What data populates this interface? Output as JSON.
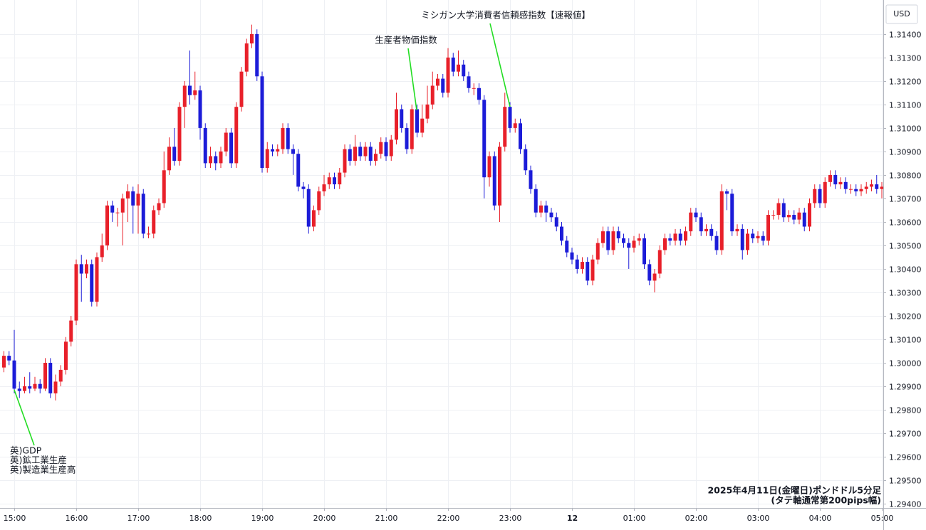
{
  "chart_data": {
    "type": "candlestick",
    "currency": "USD",
    "footnote": [
      "2025年4月11日(金曜日)ポンドドル5分足",
      "(タテ軸通常第200pips幅)"
    ],
    "annotations": [
      {
        "text": [
          "英)GDP",
          "英)鉱工業生産",
          "英)製造業生産高"
        ]
      },
      {
        "text": [
          "生産者物価指数"
        ]
      },
      {
        "text": [
          "ミシガン大学消費者信頼感指数【速報値】"
        ]
      }
    ],
    "up_color": "#e8202a",
    "down_color": "#1c1cd8",
    "grid": true,
    "ylim": [
      1.29382,
      1.31545
    ],
    "yticks": [
      {
        "value": 1.294,
        "label": "1.29400"
      },
      {
        "value": 1.295,
        "label": "1.29500"
      },
      {
        "value": 1.296,
        "label": "1.29600"
      },
      {
        "value": 1.297,
        "label": "1.29700"
      },
      {
        "value": 1.298,
        "label": "1.29800"
      },
      {
        "value": 1.299,
        "label": "1.29900"
      },
      {
        "value": 1.3,
        "label": "1.30000"
      },
      {
        "value": 1.301,
        "label": "1.30100"
      },
      {
        "value": 1.302,
        "label": "1.30200"
      },
      {
        "value": 1.303,
        "label": "1.30300"
      },
      {
        "value": 1.304,
        "label": "1.30400"
      },
      {
        "value": 1.305,
        "label": "1.30500"
      },
      {
        "value": 1.306,
        "label": "1.30600"
      },
      {
        "value": 1.307,
        "label": "1.30700"
      },
      {
        "value": 1.308,
        "label": "1.30800"
      },
      {
        "value": 1.309,
        "label": "1.30900"
      },
      {
        "value": 1.31,
        "label": "1.31000"
      },
      {
        "value": 1.311,
        "label": "1.31100"
      },
      {
        "value": 1.312,
        "label": "1.31200"
      },
      {
        "value": 1.313,
        "label": "1.31300"
      },
      {
        "value": 1.314,
        "label": "1.31400"
      }
    ],
    "xticks": [
      "15:00",
      "16:00",
      "17:00",
      "18:00",
      "19:00",
      "20:00",
      "21:00",
      "22:00",
      "23:00",
      {
        "value": "00:00",
        "label": "12"
      },
      "01:00",
      "02:00",
      "03:00",
      "04:00",
      "05:00"
    ],
    "x": [
      "14:50",
      "14:55",
      "15:00",
      "15:05",
      "15:10",
      "15:15",
      "15:20",
      "15:25",
      "15:30",
      "15:35",
      "15:40",
      "15:45",
      "15:50",
      "15:55",
      "16:00",
      "16:05",
      "16:10",
      "16:15",
      "16:20",
      "16:25",
      "16:30",
      "16:35",
      "16:40",
      "16:45",
      "16:50",
      "16:55",
      "17:00",
      "17:05",
      "17:10",
      "17:15",
      "17:20",
      "17:25",
      "17:30",
      "17:35",
      "17:40",
      "17:45",
      "17:50",
      "17:55",
      "18:00",
      "18:05",
      "18:10",
      "18:15",
      "18:20",
      "18:25",
      "18:30",
      "18:35",
      "18:40",
      "18:45",
      "18:50",
      "18:55",
      "19:00",
      "19:05",
      "19:10",
      "19:15",
      "19:20",
      "19:25",
      "19:30",
      "19:35",
      "19:40",
      "19:45",
      "19:50",
      "19:55",
      "20:00",
      "20:05",
      "20:10",
      "20:15",
      "20:20",
      "20:25",
      "20:30",
      "20:35",
      "20:40",
      "20:45",
      "20:50",
      "20:55",
      "21:00",
      "21:05",
      "21:10",
      "21:15",
      "21:20",
      "21:25",
      "21:30",
      "21:35",
      "21:40",
      "21:45",
      "21:50",
      "21:55",
      "22:00",
      "22:05",
      "22:10",
      "22:15",
      "22:20",
      "22:25",
      "22:30",
      "22:35",
      "22:40",
      "22:45",
      "22:50",
      "22:55",
      "23:00",
      "23:05",
      "23:10",
      "23:15",
      "23:20",
      "23:25",
      "23:30",
      "23:35",
      "23:40",
      "23:45",
      "23:50",
      "23:55",
      "00:00",
      "00:05",
      "00:10",
      "00:15",
      "00:20",
      "00:25",
      "00:30",
      "00:35",
      "00:40",
      "00:45",
      "00:50",
      "00:55",
      "01:00",
      "01:05",
      "01:10",
      "01:15",
      "01:20",
      "01:25",
      "01:30",
      "01:35",
      "01:40",
      "01:45",
      "01:50",
      "01:55",
      "02:00",
      "02:05",
      "02:10",
      "02:15",
      "02:20",
      "02:25",
      "02:30",
      "02:35",
      "02:40",
      "02:45",
      "02:50",
      "02:55",
      "03:00",
      "03:05",
      "03:10",
      "03:15",
      "03:20",
      "03:25",
      "03:30",
      "03:35",
      "03:40",
      "03:45",
      "03:50",
      "03:55",
      "04:00",
      "04:05",
      "04:10",
      "04:15",
      "04:20",
      "04:25",
      "04:30",
      "04:35",
      "04:40",
      "04:45",
      "04:50",
      "04:55",
      "05:00"
    ],
    "open": [
      1.2998,
      1.3003,
      1.3001,
      1.2989,
      1.2988,
      1.299,
      1.2989,
      1.2991,
      1.2989,
      1.3,
      1.2987,
      1.2992,
      1.2997,
      1.3009,
      1.3018,
      1.3042,
      1.3038,
      1.3042,
      1.3026,
      1.3045,
      1.305,
      1.3067,
      1.3064,
      1.3064,
      1.307,
      1.3073,
      1.3067,
      1.3072,
      1.3055,
      1.3055,
      1.3065,
      1.3068,
      1.3082,
      1.3092,
      1.3086,
      1.3109,
      1.3118,
      1.3114,
      1.3116,
      1.31,
      1.3085,
      1.3088,
      1.3085,
      1.309,
      1.3098,
      1.3085,
      1.3109,
      1.3124,
      1.3136,
      1.314,
      1.3122,
      1.3083,
      1.3091,
      1.309,
      1.3091,
      1.31,
      1.3091,
      1.3089,
      1.3075,
      1.3074,
      1.3058,
      1.3065,
      1.3073,
      1.3076,
      1.3079,
      1.3076,
      1.3081,
      1.3091,
      1.3086,
      1.3092,
      1.3088,
      1.3092,
      1.3086,
      1.3089,
      1.3094,
      1.3088,
      1.3095,
      1.3108,
      1.31,
      1.3091,
      1.3108,
      1.3098,
      1.3104,
      1.311,
      1.3118,
      1.3121,
      1.3115,
      1.313,
      1.3124,
      1.3127,
      1.3122,
      1.3117,
      1.3117,
      1.3112,
      1.3079,
      1.3088,
      1.3067,
      1.3092,
      1.3109,
      1.31,
      1.3102,
      1.3091,
      1.3082,
      1.3074,
      1.3064,
      1.3067,
      1.3064,
      1.3062,
      1.3058,
      1.3052,
      1.3047,
      1.3044,
      1.304,
      1.3043,
      1.3035,
      1.3044,
      1.3051,
      1.3056,
      1.3048,
      1.3056,
      1.3053,
      1.3051,
      1.3049,
      1.3052,
      1.3053,
      1.3042,
      1.3035,
      1.3038,
      1.3048,
      1.3053,
      1.3052,
      1.3055,
      1.3052,
      1.3056,
      1.3064,
      1.3062,
      1.3056,
      1.3057,
      1.3054,
      1.3048,
      1.3073,
      1.3072,
      1.3056,
      1.3057,
      1.3048,
      1.3055,
      1.3053,
      1.3054,
      1.3052,
      1.3063,
      1.3063,
      1.3068,
      1.3062,
      1.3063,
      1.3061,
      1.3064,
      1.3058,
      1.3068,
      1.3074,
      1.3068,
      1.3077,
      1.308,
      1.3076,
      1.3077,
      1.3074,
      1.3074,
      1.3073,
      1.3074,
      1.3075,
      1.3076,
      1.3074
    ],
    "high": [
      1.3005,
      1.3005,
      1.3014,
      1.2992,
      1.2994,
      1.2996,
      1.2994,
      1.2993,
      1.3002,
      1.3002,
      1.2995,
      1.2999,
      1.3011,
      1.302,
      1.3044,
      1.3046,
      1.3044,
      1.3044,
      1.3047,
      1.3055,
      1.3069,
      1.3069,
      1.3066,
      1.3072,
      1.3076,
      1.3075,
      1.3076,
      1.3074,
      1.3058,
      1.3067,
      1.307,
      1.309,
      1.3096,
      1.31,
      1.3111,
      1.312,
      1.3133,
      1.3124,
      1.3118,
      1.3102,
      1.3092,
      1.309,
      1.3092,
      1.31,
      1.31,
      1.3111,
      1.3126,
      1.3138,
      1.3144,
      1.3142,
      1.3124,
      1.3094,
      1.3093,
      1.3093,
      1.3102,
      1.3102,
      1.3093,
      1.3091,
      1.3077,
      1.3076,
      1.3067,
      1.3075,
      1.308,
      1.3081,
      1.3081,
      1.3083,
      1.3093,
      1.3093,
      1.3097,
      1.3094,
      1.3094,
      1.3094,
      1.3091,
      1.3096,
      1.3096,
      1.3097,
      1.3115,
      1.311,
      1.3102,
      1.311,
      1.311,
      1.311,
      1.3118,
      1.3124,
      1.3123,
      1.3123,
      1.3134,
      1.3132,
      1.3133,
      1.3129,
      1.3124,
      1.3119,
      1.3119,
      1.3114,
      1.309,
      1.309,
      1.3094,
      1.3115,
      1.3111,
      1.3104,
      1.3104,
      1.3093,
      1.3084,
      1.3076,
      1.3069,
      1.3069,
      1.3066,
      1.3064,
      1.306,
      1.3054,
      1.3049,
      1.3046,
      1.3045,
      1.3045,
      1.3046,
      1.3053,
      1.3058,
      1.3058,
      1.3058,
      1.3058,
      1.3055,
      1.3053,
      1.3054,
      1.3055,
      1.3055,
      1.3044,
      1.304,
      1.305,
      1.3055,
      1.3055,
      1.3057,
      1.3057,
      1.3058,
      1.3066,
      1.3066,
      1.3064,
      1.3059,
      1.3059,
      1.3056,
      1.3076,
      1.3074,
      1.3074,
      1.3059,
      1.3059,
      1.3057,
      1.3057,
      1.3056,
      1.3056,
      1.3065,
      1.3065,
      1.307,
      1.307,
      1.3065,
      1.3065,
      1.3066,
      1.3066,
      1.307,
      1.3076,
      1.3076,
      1.3079,
      1.3082,
      1.3082,
      1.3079,
      1.3079,
      1.3076,
      1.3076,
      1.3076,
      1.3077,
      1.3078,
      1.308,
      1.3077
    ],
    "low": [
      1.2996,
      1.2999,
      1.2987,
      1.2985,
      1.2987,
      1.2987,
      1.2988,
      1.2987,
      1.2988,
      1.2985,
      1.2984,
      1.299,
      1.2995,
      1.3007,
      1.3016,
      1.3026,
      1.3036,
      1.3024,
      1.3024,
      1.3043,
      1.3048,
      1.306,
      1.3058,
      1.305,
      1.306,
      1.3055,
      1.3055,
      1.3053,
      1.3053,
      1.3053,
      1.3063,
      1.3066,
      1.308,
      1.3084,
      1.3084,
      1.31,
      1.311,
      1.3112,
      1.3095,
      1.3083,
      1.3083,
      1.3082,
      1.3083,
      1.3088,
      1.3083,
      1.3083,
      1.3107,
      1.3122,
      1.3134,
      1.312,
      1.3081,
      1.3081,
      1.3088,
      1.3088,
      1.3089,
      1.3089,
      1.308,
      1.3073,
      1.307,
      1.3055,
      1.3056,
      1.3063,
      1.3071,
      1.3074,
      1.3074,
      1.3074,
      1.3079,
      1.3084,
      1.3084,
      1.3086,
      1.3086,
      1.3084,
      1.3084,
      1.3087,
      1.3086,
      1.3086,
      1.3093,
      1.3098,
      1.3089,
      1.3089,
      1.3096,
      1.3096,
      1.3102,
      1.3108,
      1.3116,
      1.3113,
      1.3113,
      1.3122,
      1.3122,
      1.312,
      1.3115,
      1.3114,
      1.311,
      1.307,
      1.3075,
      1.3065,
      1.306,
      1.309,
      1.3098,
      1.3098,
      1.3089,
      1.308,
      1.3072,
      1.3062,
      1.3062,
      1.306,
      1.306,
      1.3056,
      1.305,
      1.3045,
      1.3042,
      1.3038,
      1.3038,
      1.3033,
      1.3033,
      1.3042,
      1.3049,
      1.3046,
      1.3046,
      1.3051,
      1.3049,
      1.304,
      1.3047,
      1.305,
      1.304,
      1.3033,
      1.303,
      1.3036,
      1.3046,
      1.305,
      1.305,
      1.305,
      1.305,
      1.3054,
      1.306,
      1.3054,
      1.3054,
      1.3052,
      1.3046,
      1.3046,
      1.3065,
      1.3054,
      1.3054,
      1.3044,
      1.3046,
      1.3051,
      1.3051,
      1.305,
      1.305,
      1.3061,
      1.3061,
      1.306,
      1.306,
      1.3059,
      1.3059,
      1.3056,
      1.3056,
      1.3066,
      1.3066,
      1.3066,
      1.3075,
      1.3074,
      1.3074,
      1.3072,
      1.3072,
      1.3071,
      1.3071,
      1.3072,
      1.3073,
      1.3072,
      1.307
    ],
    "close": [
      1.3003,
      1.3001,
      1.2989,
      1.2988,
      1.299,
      1.2989,
      1.2991,
      1.2989,
      1.3,
      1.2987,
      1.2992,
      1.2997,
      1.3009,
      1.3018,
      1.3042,
      1.3038,
      1.3042,
      1.3026,
      1.3045,
      1.305,
      1.3067,
      1.3064,
      1.3064,
      1.307,
      1.3073,
      1.3067,
      1.3072,
      1.3055,
      1.3055,
      1.3065,
      1.3068,
      1.3082,
      1.3092,
      1.3086,
      1.3109,
      1.3118,
      1.3114,
      1.3116,
      1.31,
      1.3085,
      1.3088,
      1.3085,
      1.309,
      1.3098,
      1.3085,
      1.3109,
      1.3124,
      1.3136,
      1.314,
      1.3122,
      1.3083,
      1.3091,
      1.309,
      1.3091,
      1.31,
      1.3091,
      1.3089,
      1.3075,
      1.3074,
      1.3058,
      1.3065,
      1.3073,
      1.3076,
      1.3079,
      1.3076,
      1.3081,
      1.3091,
      1.3086,
      1.3092,
      1.3088,
      1.3092,
      1.3086,
      1.3089,
      1.3094,
      1.3088,
      1.3095,
      1.3108,
      1.31,
      1.3091,
      1.3108,
      1.3098,
      1.3104,
      1.311,
      1.3118,
      1.3121,
      1.3115,
      1.313,
      1.3124,
      1.3127,
      1.3122,
      1.3117,
      1.3117,
      1.3112,
      1.3079,
      1.3088,
      1.3067,
      1.3092,
      1.3109,
      1.31,
      1.3102,
      1.3091,
      1.3082,
      1.3074,
      1.3064,
      1.3067,
      1.3064,
      1.3062,
      1.3058,
      1.3052,
      1.3047,
      1.3044,
      1.304,
      1.3043,
      1.3035,
      1.3044,
      1.3051,
      1.3056,
      1.3048,
      1.3056,
      1.3053,
      1.3051,
      1.3049,
      1.3052,
      1.3053,
      1.3042,
      1.3035,
      1.3038,
      1.3048,
      1.3053,
      1.3052,
      1.3055,
      1.3052,
      1.3056,
      1.3064,
      1.3062,
      1.3056,
      1.3057,
      1.3054,
      1.3048,
      1.3073,
      1.3072,
      1.3056,
      1.3057,
      1.3048,
      1.3055,
      1.3053,
      1.3054,
      1.3052,
      1.3063,
      1.3063,
      1.3068,
      1.3062,
      1.3063,
      1.3061,
      1.3064,
      1.3058,
      1.3068,
      1.3074,
      1.3068,
      1.3077,
      1.308,
      1.3076,
      1.3077,
      1.3074,
      1.3074,
      1.3073,
      1.3074,
      1.3075,
      1.3076,
      1.3074,
      1.3075
    ]
  }
}
